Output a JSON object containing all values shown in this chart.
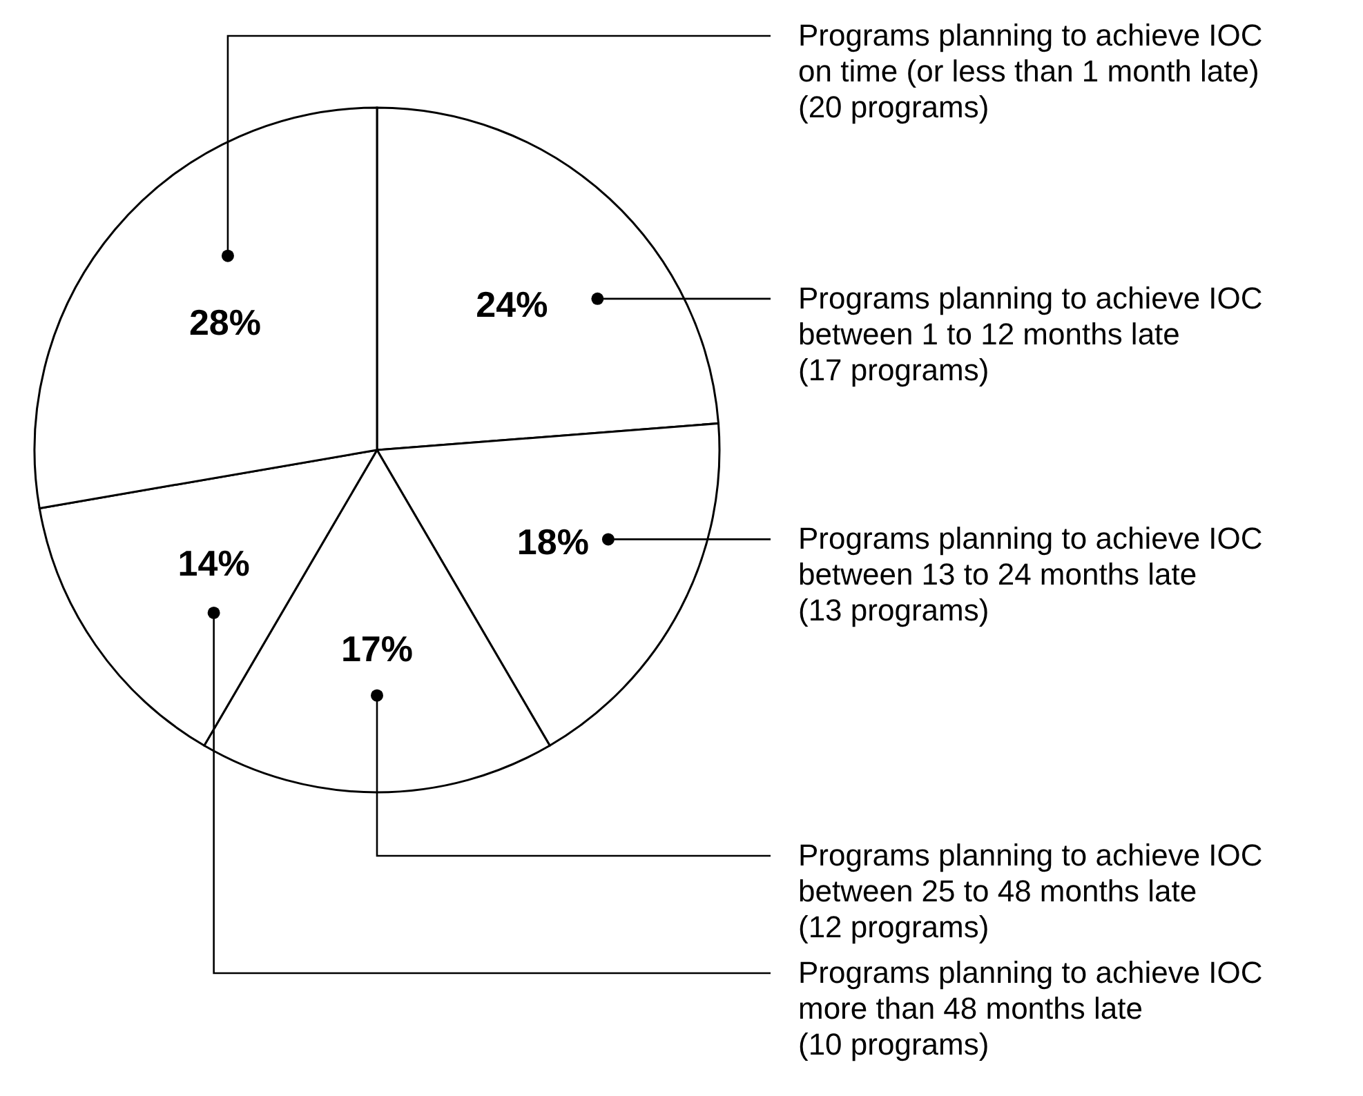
{
  "chart_data": {
    "type": "pie",
    "categories": [
      "Programs planning to achieve IOC\nbetween 1 to 12 months late\n(17 programs)",
      "Programs planning to achieve IOC\nbetween 13 to 24 months late\n(13 programs)",
      "Programs planning to achieve IOC\nbetween 25 to 48 months late\n(12 programs)",
      "Programs planning to achieve IOC\nmore than 48 months late\n(10 programs)",
      "Programs planning to achieve IOC\non time (or less than 1 month late)\n(20 programs)"
    ],
    "values": [
      24,
      18,
      17,
      14,
      28
    ],
    "colors": [
      "#ffffff",
      "#ffffff",
      "#ffffff",
      "#ffffff",
      "#ffffff"
    ],
    "value_labels": [
      "24%",
      "18%",
      "17%",
      "14%",
      "28%"
    ]
  }
}
